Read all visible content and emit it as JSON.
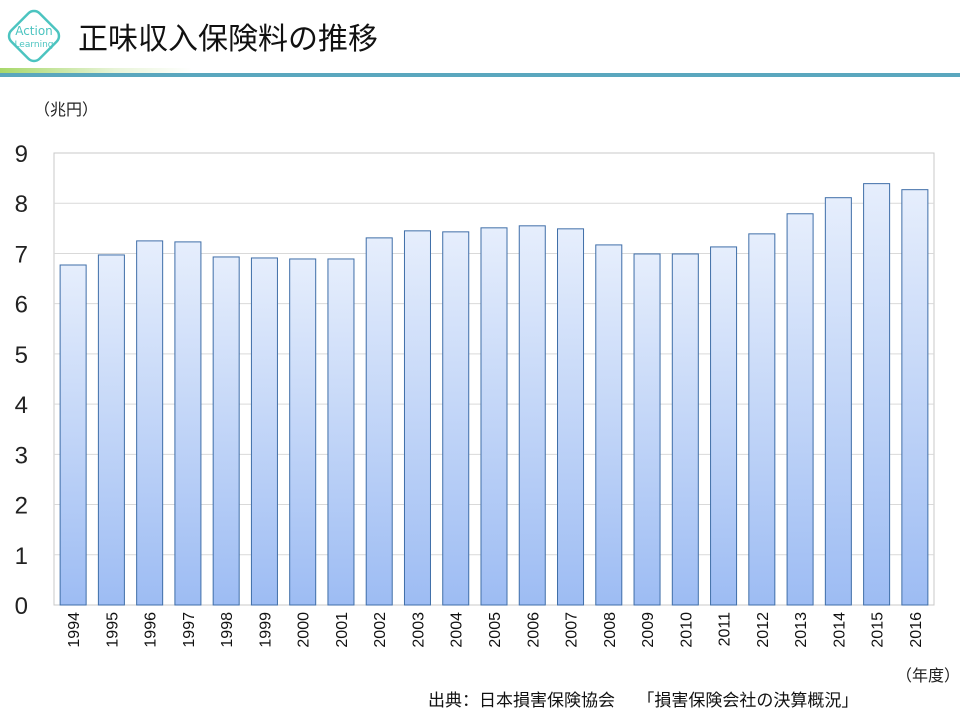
{
  "header": {
    "title": "正味収入保険料の推移",
    "logo_text": [
      "Action",
      "Learning"
    ]
  },
  "colors": {
    "bar_top": "#e6eefc",
    "bar_bottom": "#9dbcf3",
    "bar_stroke": "#3f6ea8",
    "accent": "#5aa7be",
    "logo": "#4cc4c0"
  },
  "chart_data": {
    "type": "bar",
    "title": "正味収入保険料の推移",
    "ylabel": "（兆円）",
    "xlabel": "（年度）",
    "ylim": [
      0,
      9
    ],
    "yticks": [
      0,
      1,
      2,
      3,
      4,
      5,
      6,
      7,
      8,
      9
    ],
    "grid": true,
    "categories": [
      "1994",
      "1995",
      "1996",
      "1997",
      "1998",
      "1999",
      "2000",
      "2001",
      "2002",
      "2003",
      "2004",
      "2005",
      "2006",
      "2007",
      "2008",
      "2009",
      "2010",
      "2011",
      "2012",
      "2013",
      "2014",
      "2015",
      "2016"
    ],
    "values": [
      6.77,
      6.97,
      7.25,
      7.23,
      6.93,
      6.91,
      6.89,
      6.89,
      7.31,
      7.45,
      7.43,
      7.51,
      7.55,
      7.49,
      7.17,
      6.99,
      6.99,
      7.13,
      7.39,
      7.79,
      8.11,
      8.39,
      8.27
    ]
  },
  "footer": {
    "source": "出典：日本損害保険協会　 「損害保険会社の決算概況」"
  }
}
